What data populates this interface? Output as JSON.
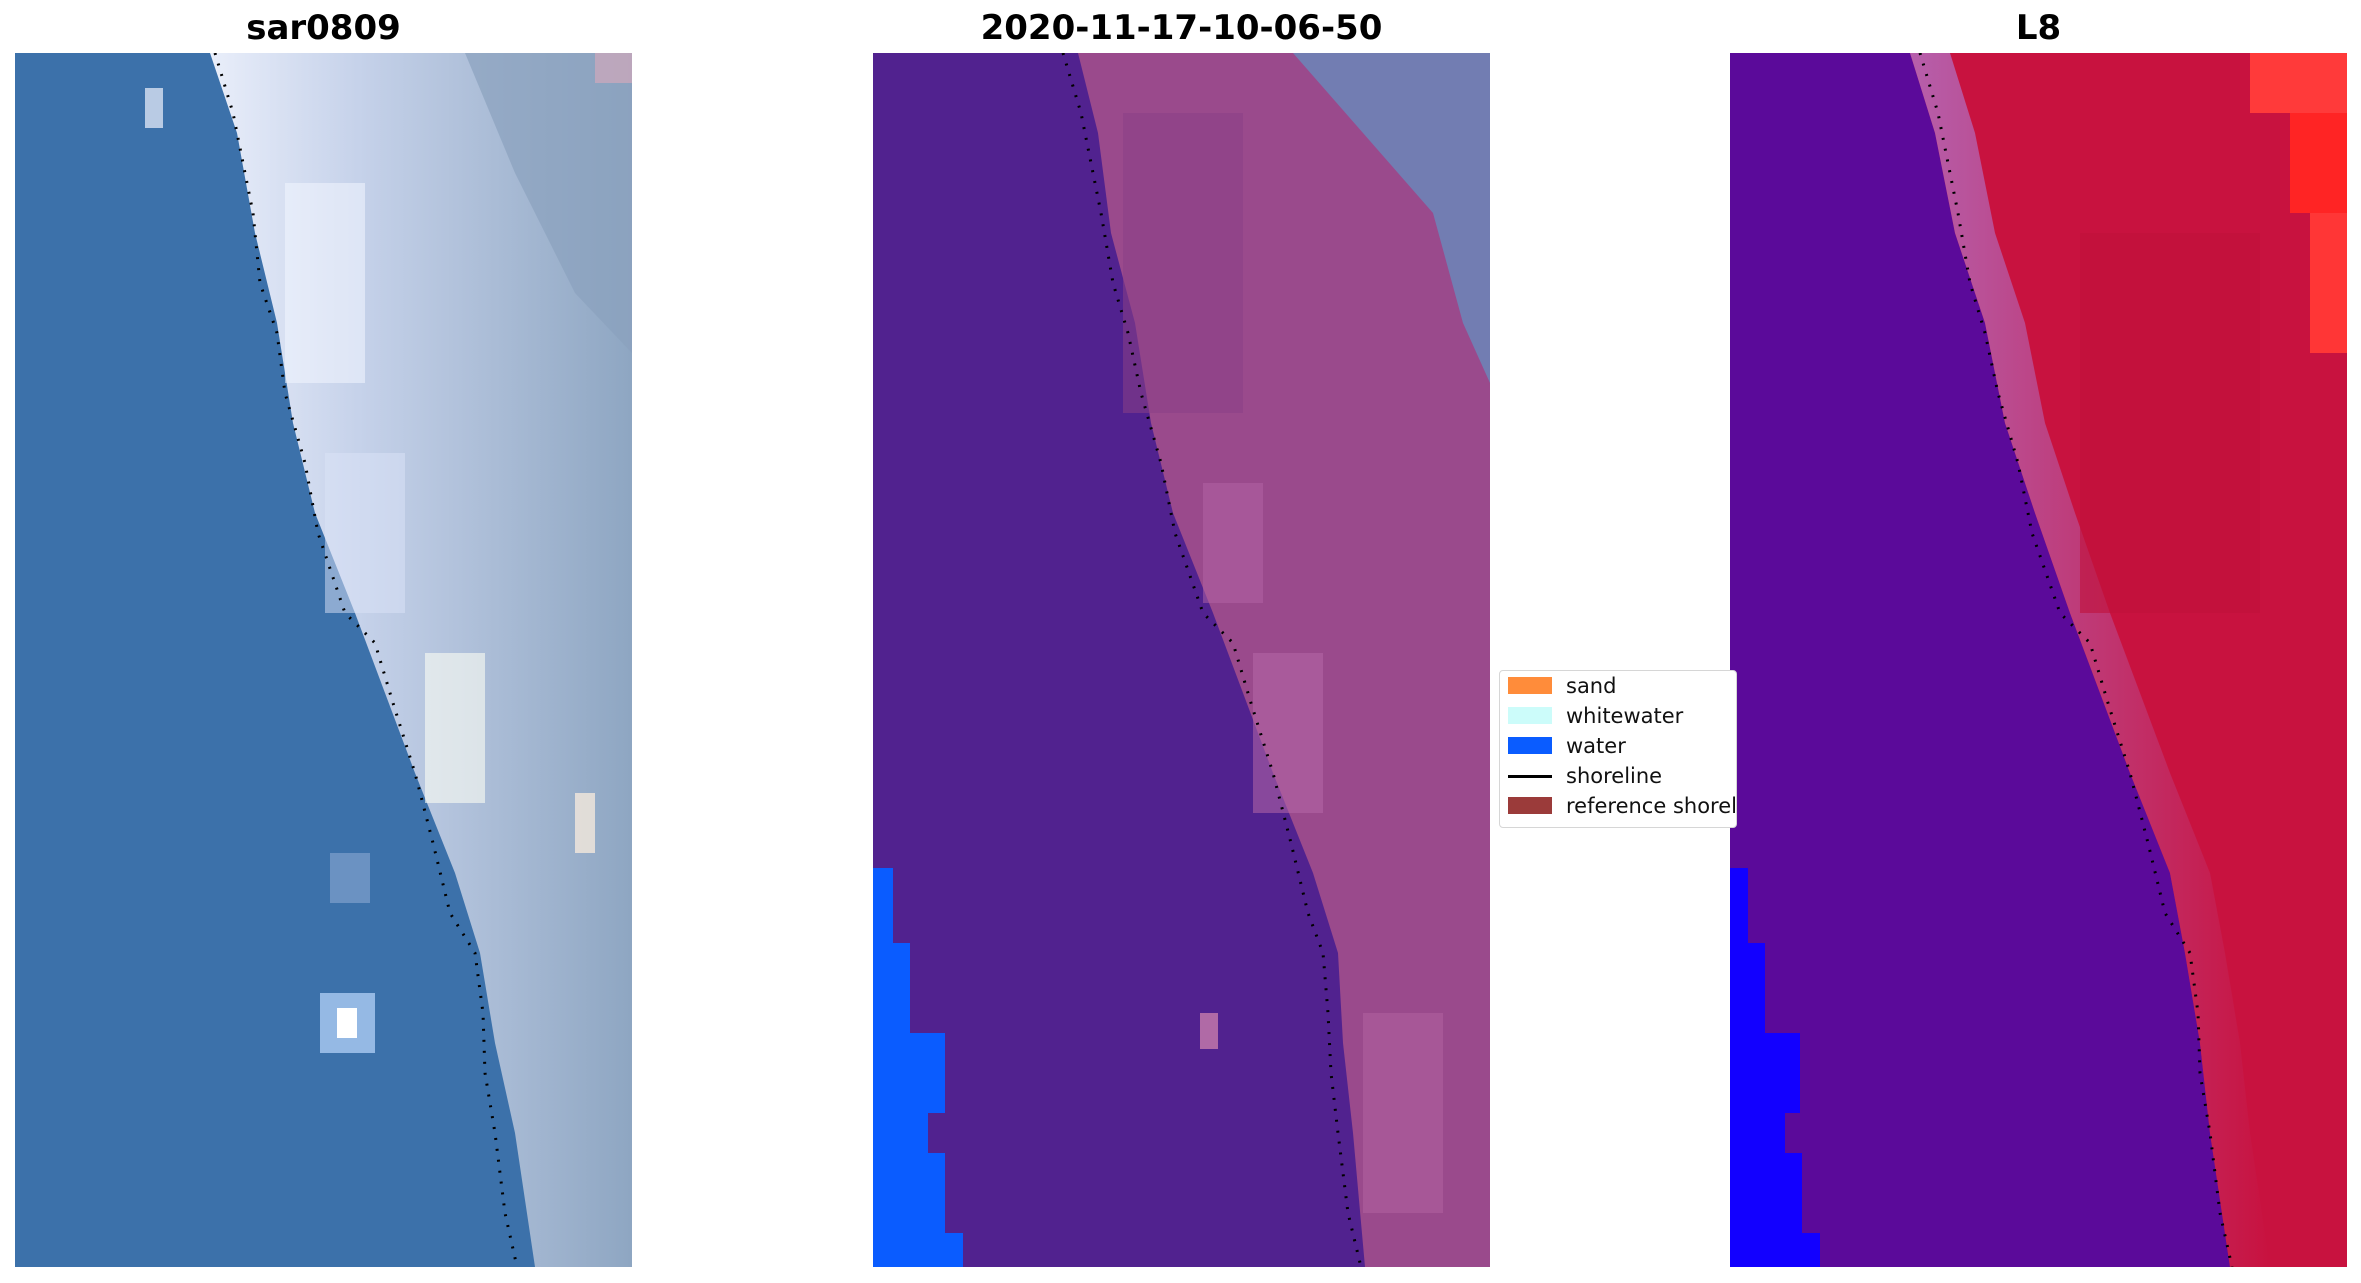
{
  "panels": [
    {
      "title": "sar0809"
    },
    {
      "title": "2020-11-17-10-06-50"
    },
    {
      "title": "L8"
    }
  ],
  "legend": {
    "items": [
      {
        "label": "sand",
        "color": "#ff8c3a",
        "kind": "patch"
      },
      {
        "label": "whitewater",
        "color": "#ccfcfa",
        "kind": "patch"
      },
      {
        "label": "water",
        "color": "#0a5cff",
        "kind": "patch"
      },
      {
        "label": "shoreline",
        "color": "#000000",
        "kind": "line"
      },
      {
        "label": "reference shoreline",
        "color": "#9b3b3a",
        "kind": "patch"
      }
    ]
  },
  "colors": {
    "sea_true_color": "#3a6fa6",
    "beach_true_color": "#b8c6dc",
    "classified_water_overlay": "#51228f",
    "classified_land": "#9a4a8c",
    "l8_water": "#5b0a9a",
    "l8_land": "#c8123f",
    "water_class": "#0a5cff"
  }
}
